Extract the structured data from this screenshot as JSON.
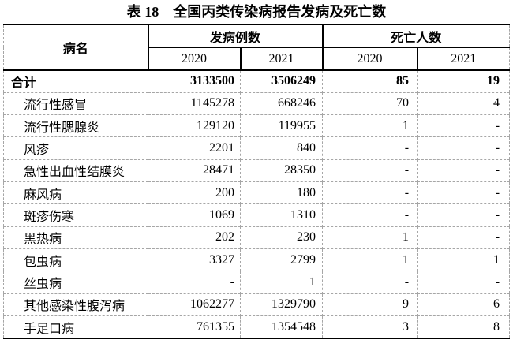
{
  "title": "表 18　全国丙类传染病报告发病及死亡数",
  "colors": {
    "text": "#000000",
    "solid_border": "#000000",
    "dashed_grid": "#a6a6a6",
    "background": "#ffffff"
  },
  "table": {
    "header": {
      "disease": "病名",
      "cases_group": "发病例数",
      "deaths_group": "死亡人数",
      "cases_years": [
        "2020",
        "2021"
      ],
      "deaths_years": [
        "2020",
        "2021"
      ]
    },
    "rows": [
      {
        "name": "合计",
        "values": [
          "3133500",
          "3506249",
          "85",
          "19"
        ]
      },
      {
        "name": "流行性感冒",
        "values": [
          "1145278",
          "668246",
          "70",
          "4"
        ]
      },
      {
        "name": "流行性腮腺炎",
        "values": [
          "129120",
          "119955",
          "1",
          "-"
        ]
      },
      {
        "name": "风疹",
        "values": [
          "2201",
          "840",
          "-",
          "-"
        ]
      },
      {
        "name": "急性出血性结膜炎",
        "values": [
          "28471",
          "28350",
          "-",
          "-"
        ]
      },
      {
        "name": "麻风病",
        "values": [
          "200",
          "180",
          "-",
          "-"
        ]
      },
      {
        "name": "斑疹伤寒",
        "values": [
          "1069",
          "1310",
          "-",
          "-"
        ]
      },
      {
        "name": "黑热病",
        "values": [
          "202",
          "230",
          "1",
          "-"
        ]
      },
      {
        "name": "包虫病",
        "values": [
          "3327",
          "2799",
          "1",
          "1"
        ]
      },
      {
        "name": "丝虫病",
        "values": [
          "-",
          "1",
          "-",
          "-"
        ]
      },
      {
        "name": "其他感染性腹泻病",
        "values": [
          "1062277",
          "1329790",
          "9",
          "6"
        ]
      },
      {
        "name": "手足口病",
        "values": [
          "761355",
          "1354548",
          "3",
          "8"
        ]
      }
    ]
  }
}
